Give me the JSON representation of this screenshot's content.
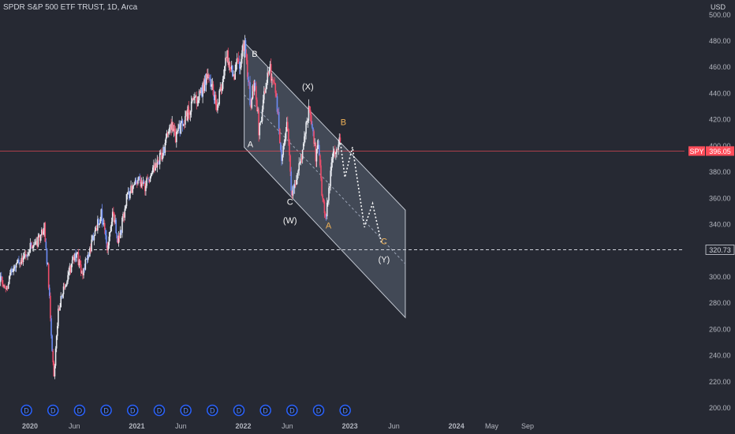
{
  "header": {
    "symbol_title": "SPDR S&P 500 ETF TRUST, 1D, Arca",
    "currency": "USD"
  },
  "colors": {
    "background": "#262933",
    "bull": "#e7e9ef",
    "bear": "#ee4d6a",
    "bear_alt": "#6c8cf5",
    "channel_fill": "#5a6473",
    "channel_line": "#c3c8d2",
    "wave_white": "#f5f5f5",
    "wave_orange": "#f0b257",
    "price_line": "#ff4d5a",
    "dividend": "#2962ff"
  },
  "chart_data": {
    "type": "candlestick",
    "title": "SPDR S&P 500 ETF TRUST, 1D, Arca",
    "ylabel": "USD",
    "ylim": [
      196,
      505
    ],
    "grid": false,
    "y_ticks": [
      "500.00",
      "480.00",
      "460.00",
      "440.00",
      "420.00",
      "400.00",
      "380.00",
      "360.00",
      "340.00",
      "320.00",
      "300.00",
      "280.00",
      "260.00",
      "240.00",
      "220.00",
      "200.00"
    ],
    "x_ticks": [
      {
        "label": "2020",
        "date": "2020-01-01"
      },
      {
        "label": "Jun",
        "date": "2020-06-01"
      },
      {
        "label": "2021",
        "date": "2021-01-01"
      },
      {
        "label": "Jun",
        "date": "2021-06-01"
      },
      {
        "label": "2022",
        "date": "2022-01-01"
      },
      {
        "label": "Jun",
        "date": "2022-06-01"
      },
      {
        "label": "2023",
        "date": "2023-01-01"
      },
      {
        "label": "Jun",
        "date": "2023-06-01"
      },
      {
        "label": "2024",
        "date": "2024-01-01"
      },
      {
        "label": "May",
        "date": "2024-05-01"
      },
      {
        "label": "Sep",
        "date": "2024-09-01"
      }
    ],
    "price_path": [
      [
        "2019-08-26",
        288
      ],
      [
        "2019-09-20",
        300
      ],
      [
        "2019-10-10",
        290
      ],
      [
        "2019-11-05",
        308
      ],
      [
        "2019-12-01",
        312
      ],
      [
        "2019-12-31",
        322
      ],
      [
        "2020-01-31",
        328
      ],
      [
        "2020-02-19",
        338
      ],
      [
        "2020-03-02",
        306
      ],
      [
        "2020-03-23",
        222
      ],
      [
        "2020-04-08",
        276
      ],
      [
        "2020-04-29",
        294
      ],
      [
        "2020-06-08",
        320
      ],
      [
        "2020-06-26",
        300
      ],
      [
        "2020-07-31",
        326
      ],
      [
        "2020-08-31",
        349
      ],
      [
        "2020-09-23",
        322
      ],
      [
        "2020-10-12",
        352
      ],
      [
        "2020-10-30",
        326
      ],
      [
        "2020-11-30",
        362
      ],
      [
        "2020-12-31",
        373
      ],
      [
        "2021-01-29",
        370
      ],
      [
        "2021-02-26",
        382
      ],
      [
        "2021-03-31",
        396
      ],
      [
        "2021-04-30",
        418
      ],
      [
        "2021-05-12",
        405
      ],
      [
        "2021-06-30",
        428
      ],
      [
        "2021-07-30",
        438
      ],
      [
        "2021-08-31",
        451
      ],
      [
        "2021-09-02",
        453
      ],
      [
        "2021-10-04",
        428
      ],
      [
        "2021-11-05",
        469
      ],
      [
        "2021-11-30",
        455
      ],
      [
        "2021-12-10",
        470
      ],
      [
        "2021-12-20",
        455
      ],
      [
        "2022-01-04",
        479
      ],
      [
        "2022-01-27",
        430
      ],
      [
        "2022-02-09",
        455
      ],
      [
        "2022-02-24",
        410
      ],
      [
        "2022-03-29",
        462
      ],
      [
        "2022-04-20",
        445
      ],
      [
        "2022-05-12",
        392
      ],
      [
        "2022-05-31",
        417
      ],
      [
        "2022-06-16",
        363
      ],
      [
        "2022-07-15",
        385
      ],
      [
        "2022-08-16",
        430
      ],
      [
        "2022-09-06",
        392
      ],
      [
        "2022-09-13",
        404
      ],
      [
        "2022-09-30",
        358
      ],
      [
        "2022-10-13",
        348
      ],
      [
        "2022-10-31",
        388
      ],
      [
        "2022-11-10",
        395
      ],
      [
        "2022-11-30",
        406
      ]
    ],
    "dividend_dates": [
      "2019-12-20",
      "2020-03-20",
      "2020-06-19",
      "2020-09-18",
      "2020-12-18",
      "2021-03-19",
      "2021-06-18",
      "2021-09-17",
      "2021-12-17",
      "2022-03-18",
      "2022-06-17",
      "2022-09-16",
      "2022-12-16"
    ],
    "dividend_marker_label": "D",
    "last_price": {
      "symbol": "SPY",
      "value": 396.05,
      "label": "396.05"
    },
    "horizontal_line": {
      "value": 320.73,
      "label": "320.73"
    },
    "channel": {
      "upper": [
        [
          "2022-01-04",
          479
        ],
        [
          "2023-07-10",
          351
        ]
      ],
      "lower": [
        [
          "2022-01-04",
          399
        ],
        [
          "2023-07-10",
          269
        ]
      ],
      "midline": [
        [
          "2022-01-04",
          439
        ],
        [
          "2023-07-10",
          310
        ]
      ]
    },
    "projection": [
      [
        "2022-11-30",
        402
      ],
      [
        "2022-12-15",
        376
      ],
      [
        "2023-01-10",
        399
      ],
      [
        "2023-02-20",
        338
      ],
      [
        "2023-03-20",
        356
      ],
      [
        "2023-04-20",
        325
      ]
    ],
    "wave_labels": [
      {
        "text": "B",
        "date": "2022-02-09",
        "value": 468,
        "color": "white"
      },
      {
        "text": "(X)",
        "date": "2022-08-10",
        "value": 443,
        "color": "white"
      },
      {
        "text": "B",
        "date": "2022-12-10",
        "value": 416,
        "color": "orange"
      },
      {
        "text": "A",
        "date": "2022-01-25",
        "value": 399,
        "color": "white"
      },
      {
        "text": "C",
        "date": "2022-06-10",
        "value": 355,
        "color": "white"
      },
      {
        "text": "(W)",
        "date": "2022-06-10",
        "value": 341,
        "color": "white"
      },
      {
        "text": "A",
        "date": "2022-10-20",
        "value": 337,
        "color": "orange"
      },
      {
        "text": "C",
        "date": "2023-04-28",
        "value": 325,
        "color": "orange"
      },
      {
        "text": "(Y)",
        "date": "2023-04-28",
        "value": 311,
        "color": "white"
      }
    ]
  }
}
